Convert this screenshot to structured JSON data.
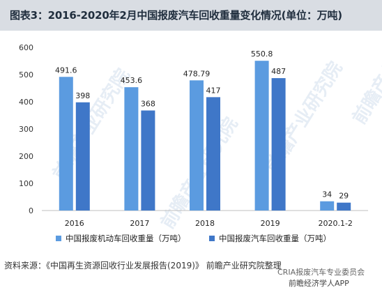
{
  "title": "图表3：2016-2020年2月中国报废汽车回收重量变化情况(单位：万吨)",
  "source": "资料来源：《中国再生资源回收行业发展报告(2019)》 前瞻产业研究院整理",
  "watermark": {
    "brand": "前瞻产业研究院",
    "footer_line1": "CRIA报废汽车专业委员会",
    "footer_line2": "前瞻经济学人APP"
  },
  "colors": {
    "series1": "#5b9be0",
    "series2": "#3f77c8",
    "title_bg": "#d9dde3"
  },
  "chart_data": {
    "type": "bar",
    "title": "图表3：2016-2020年2月中国报废汽车回收重量变化情况(单位：万吨)",
    "categories": [
      "2016",
      "2017",
      "2018",
      "2019",
      "2020.1-2"
    ],
    "series": [
      {
        "name": "中国报废机动车回收重量（万吨）",
        "values": [
          491.6,
          453.6,
          478.79,
          550.8,
          34
        ]
      },
      {
        "name": "中国报废汽车回收重量（万吨）",
        "values": [
          398,
          368,
          417,
          487,
          29
        ]
      }
    ],
    "ylim": [
      0,
      600
    ],
    "yticks": [
      0,
      100,
      200,
      300,
      400,
      500,
      600
    ],
    "grid": false,
    "legend_position": "bottom"
  }
}
